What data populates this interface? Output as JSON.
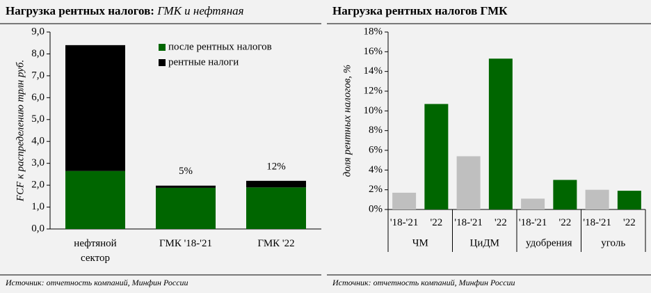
{
  "chart_data": [
    {
      "type": "bar",
      "stacked": true,
      "title": "Нагрузка рентных налогов:",
      "title_italic": "ГМК и нефтяная",
      "y_label": "FCF к распределению трлн руб.",
      "categories": [
        "нефтяной\nсектор",
        "ГМК '18-'21",
        "ГМК '22"
      ],
      "series": [
        {
          "name": "после рентных налогов",
          "color": "#006600",
          "values": [
            2.65,
            1.88,
            1.9
          ]
        },
        {
          "name": "рентные налоги",
          "color": "#000000",
          "values": [
            5.75,
            0.1,
            0.3
          ]
        }
      ],
      "annotations": [
        null,
        "5%",
        "12%"
      ],
      "ylim": [
        0,
        9
      ],
      "yticks": [
        {
          "value": 0,
          "label": "0,0"
        },
        {
          "value": 1,
          "label": "1,0"
        },
        {
          "value": 2,
          "label": "2,0"
        },
        {
          "value": 3,
          "label": "3,0"
        },
        {
          "value": 4,
          "label": "4,0"
        },
        {
          "value": 5,
          "label": "5,0"
        },
        {
          "value": 6,
          "label": "6,0"
        },
        {
          "value": 7,
          "label": "7,0"
        },
        {
          "value": 8,
          "label": "8,0"
        },
        {
          "value": 9,
          "label": "9,0"
        }
      ],
      "legend": "top-right",
      "source": "Источник: отчетность компаний, Минфин России"
    },
    {
      "type": "bar",
      "title": "Нагрузка рентных налогов ГМК",
      "y_label": "доля рентных налогов, %",
      "categories": [
        "'18-'21",
        "'22",
        "'18-'21",
        "'22",
        "'18-'21",
        "'22",
        "'18-'21",
        "'22"
      ],
      "groups": [
        "ЧМ",
        "ЦиДМ",
        "удобрения",
        "уголь"
      ],
      "values": [
        1.7,
        10.7,
        5.4,
        15.3,
        1.1,
        3.0,
        2.0,
        1.9
      ],
      "colors": [
        "#bfbfbf",
        "#006600",
        "#bfbfbf",
        "#006600",
        "#bfbfbf",
        "#006600",
        "#bfbfbf",
        "#006600"
      ],
      "ylim": [
        0,
        18
      ],
      "yticks": [
        {
          "value": 0,
          "label": "0%"
        },
        {
          "value": 2,
          "label": "2%"
        },
        {
          "value": 4,
          "label": "4%"
        },
        {
          "value": 6,
          "label": "6%"
        },
        {
          "value": 8,
          "label": "8%"
        },
        {
          "value": 10,
          "label": "10%"
        },
        {
          "value": 12,
          "label": "12%"
        },
        {
          "value": 14,
          "label": "14%"
        },
        {
          "value": 16,
          "label": "16%"
        },
        {
          "value": 18,
          "label": "18%"
        }
      ],
      "source": "Источник: отчетность компаний, Минфин России"
    }
  ]
}
